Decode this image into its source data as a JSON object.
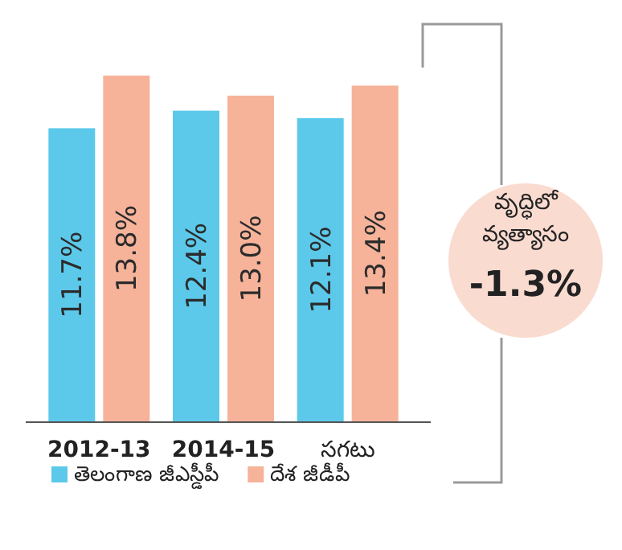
{
  "chart_data": {
    "type": "bar",
    "categories": [
      "2012-13",
      "2014-15",
      "సగటు"
    ],
    "series": [
      {
        "name": "తెలంగాణ జీఎస్డీపీ",
        "color": "#5cc9ea",
        "values": [
          11.7,
          12.4,
          12.1
        ],
        "value_labels": [
          "11.7%",
          "12.4%",
          "12.1%"
        ]
      },
      {
        "name": "దేశ జీడీపీ",
        "color": "#f6b39a",
        "values": [
          13.8,
          13.0,
          13.4
        ],
        "value_labels": [
          "13.8%",
          "13.0%",
          "13.4%"
        ]
      }
    ],
    "legend": "bottom",
    "annotations": [
      "వృద్ధిలో వ్యత్యాసం",
      "-1.3%"
    ]
  }
}
